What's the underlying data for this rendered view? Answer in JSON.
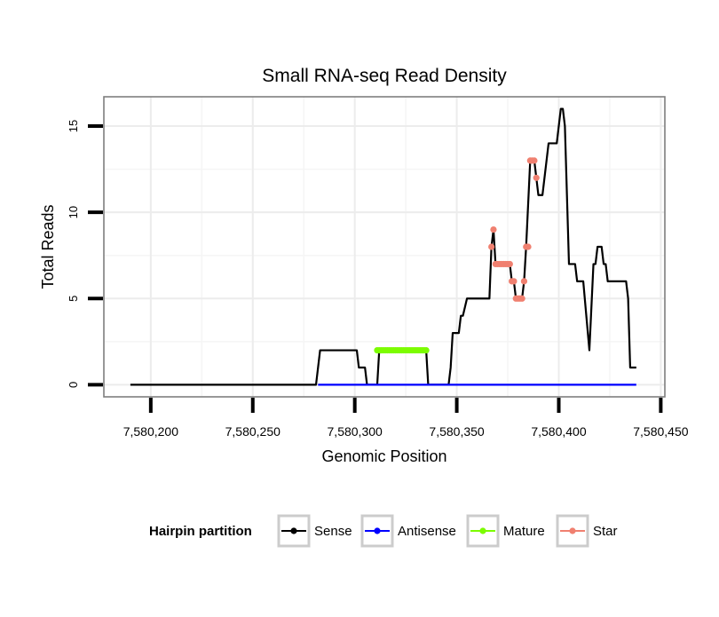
{
  "chart_data": {
    "type": "line",
    "title": "Small RNA-seq Read Density",
    "xlabel": "Genomic Position",
    "ylabel": "Total Reads",
    "xlim": [
      7580177,
      7580452
    ],
    "ylim": [
      -0.7,
      16.7
    ],
    "x_ticks": [
      {
        "value": 7580200,
        "label": "7,580,200"
      },
      {
        "value": 7580250,
        "label": "7,580,250"
      },
      {
        "value": 7580300,
        "label": "7,580,300"
      },
      {
        "value": 7580350,
        "label": "7,580,350"
      },
      {
        "value": 7580400,
        "label": "7,580,400"
      },
      {
        "value": 7580450,
        "label": "7,580,450"
      }
    ],
    "y_ticks": [
      {
        "value": 0,
        "label": "0"
      },
      {
        "value": 5,
        "label": "5"
      },
      {
        "value": 10,
        "label": "10"
      },
      {
        "value": 15,
        "label": "15"
      }
    ],
    "grid": true,
    "legend": {
      "title": "Hairpin partition",
      "position": "bottom",
      "entries": [
        {
          "name": "Sense",
          "color": "#000000"
        },
        {
          "name": "Antisense",
          "color": "#0000ff"
        },
        {
          "name": "Mature",
          "color": "#7cfc00"
        },
        {
          "name": "Star",
          "color": "#f08070"
        }
      ]
    },
    "series": [
      {
        "name": "Sense",
        "color": "#000000",
        "style": "line",
        "points": [
          [
            7580190,
            0
          ],
          [
            7580281,
            0
          ],
          [
            7580283,
            2
          ],
          [
            7580301,
            2
          ],
          [
            7580302,
            1
          ],
          [
            7580305,
            1
          ],
          [
            7580306,
            0
          ],
          [
            7580311,
            0
          ],
          [
            7580312,
            2
          ],
          [
            7580335,
            2
          ],
          [
            7580336,
            0
          ],
          [
            7580346,
            0
          ],
          [
            7580347,
            1
          ],
          [
            7580348,
            3
          ],
          [
            7580351,
            3
          ],
          [
            7580352,
            4
          ],
          [
            7580353,
            4
          ],
          [
            7580355,
            5
          ],
          [
            7580361,
            5
          ],
          [
            7580362,
            5
          ],
          [
            7580366,
            5
          ],
          [
            7580367,
            8
          ],
          [
            7580368,
            9
          ],
          [
            7580369,
            7
          ],
          [
            7580376,
            7
          ],
          [
            7580377,
            6
          ],
          [
            7580378,
            6
          ],
          [
            7580379,
            5
          ],
          [
            7580382,
            5
          ],
          [
            7580383,
            6
          ],
          [
            7580384,
            8
          ],
          [
            7580386,
            13
          ],
          [
            7580388,
            13
          ],
          [
            7580389,
            12
          ],
          [
            7580390,
            11
          ],
          [
            7580392,
            11
          ],
          [
            7580395,
            14
          ],
          [
            7580397,
            14
          ],
          [
            7580399,
            14
          ],
          [
            7580401,
            16
          ],
          [
            7580402,
            16
          ],
          [
            7580403,
            15
          ],
          [
            7580405,
            7
          ],
          [
            7580407,
            7
          ],
          [
            7580408,
            7
          ],
          [
            7580409,
            6
          ],
          [
            7580412,
            6
          ],
          [
            7580415,
            2
          ],
          [
            7580417,
            7
          ],
          [
            7580418,
            7
          ],
          [
            7580419,
            8
          ],
          [
            7580421,
            8
          ],
          [
            7580422,
            7
          ],
          [
            7580423,
            7
          ],
          [
            7580424,
            6
          ],
          [
            7580432,
            6
          ],
          [
            7580433,
            6
          ],
          [
            7580434,
            5
          ],
          [
            7580435,
            1
          ],
          [
            7580438,
            1
          ]
        ]
      },
      {
        "name": "Antisense",
        "color": "#0000ff",
        "style": "line",
        "points": [
          [
            7580282,
            0
          ],
          [
            7580438,
            0
          ]
        ]
      },
      {
        "name": "Mature",
        "color": "#7cfc00",
        "style": "points",
        "points": [
          [
            7580311,
            2
          ],
          [
            7580312,
            2
          ],
          [
            7580313,
            2
          ],
          [
            7580314,
            2
          ],
          [
            7580315,
            2
          ],
          [
            7580316,
            2
          ],
          [
            7580317,
            2
          ],
          [
            7580318,
            2
          ],
          [
            7580319,
            2
          ],
          [
            7580320,
            2
          ],
          [
            7580321,
            2
          ],
          [
            7580322,
            2
          ],
          [
            7580323,
            2
          ],
          [
            7580324,
            2
          ],
          [
            7580325,
            2
          ],
          [
            7580326,
            2
          ],
          [
            7580327,
            2
          ],
          [
            7580328,
            2
          ],
          [
            7580329,
            2
          ],
          [
            7580330,
            2
          ],
          [
            7580331,
            2
          ],
          [
            7580332,
            2
          ],
          [
            7580333,
            2
          ],
          [
            7580334,
            2
          ],
          [
            7580335,
            2
          ]
        ]
      },
      {
        "name": "Star",
        "color": "#f08070",
        "style": "points",
        "points": [
          [
            7580367,
            8
          ],
          [
            7580368,
            9
          ],
          [
            7580369,
            7
          ],
          [
            7580370,
            7
          ],
          [
            7580371,
            7
          ],
          [
            7580372,
            7
          ],
          [
            7580373,
            7
          ],
          [
            7580374,
            7
          ],
          [
            7580375,
            7
          ],
          [
            7580376,
            7
          ],
          [
            7580377,
            6
          ],
          [
            7580378,
            6
          ],
          [
            7580379,
            5
          ],
          [
            7580380,
            5
          ],
          [
            7580381,
            5
          ],
          [
            7580382,
            5
          ],
          [
            7580383,
            6
          ],
          [
            7580384,
            8
          ],
          [
            7580385,
            8
          ],
          [
            7580386,
            13
          ],
          [
            7580387,
            13
          ],
          [
            7580388,
            13
          ],
          [
            7580389,
            12
          ]
        ]
      }
    ]
  }
}
